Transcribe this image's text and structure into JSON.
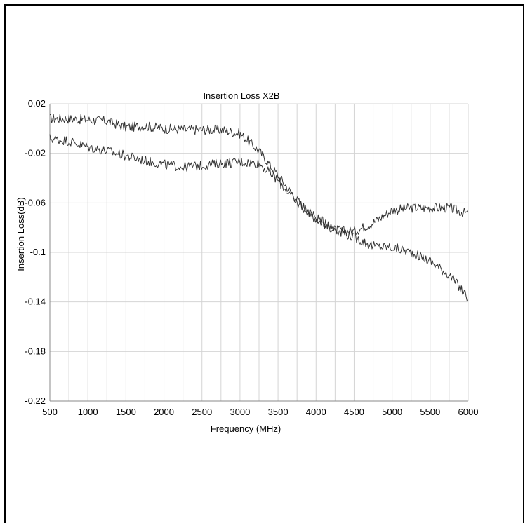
{
  "chart_data": {
    "type": "line",
    "title": "Insertion Loss X2B",
    "xlabel": "Frequency (MHz)",
    "ylabel": "Insertion Loss(dB)",
    "xlim": [
      500,
      6000
    ],
    "ylim": [
      -0.22,
      0.02
    ],
    "x_ticks": [
      500,
      1000,
      1500,
      2000,
      2500,
      3000,
      3500,
      4000,
      4500,
      5000,
      5500,
      6000
    ],
    "x_tick_labels": [
      "500",
      "1000",
      "1500",
      "2000",
      "2500",
      "3000",
      "3500",
      "4000",
      "4500",
      "5000",
      "5500",
      "6000"
    ],
    "y_ticks": [
      0.02,
      -0.02,
      -0.06,
      -0.1,
      -0.14,
      -0.18,
      -0.22
    ],
    "y_tick_labels": [
      "0.02",
      "-0.02",
      "-0.06",
      "-0.1",
      "-0.14",
      "-0.18",
      "-0.22"
    ],
    "x_minor_step": 250,
    "grid": true,
    "legend": "none",
    "line_color": "#333333",
    "grid_color": "#d4d4d4",
    "series": [
      {
        "x": [
          500,
          750,
          1000,
          1250,
          1500,
          1750,
          2000,
          2250,
          2500,
          2750,
          3000,
          3250,
          3500,
          3750,
          4000,
          4250,
          4500,
          4750,
          5000,
          5250,
          5500,
          5750,
          6000
        ],
        "values": [
          0.008,
          0.008,
          0.007,
          0.006,
          0.001,
          0.002,
          0.0,
          -0.001,
          -0.001,
          -0.001,
          -0.004,
          -0.018,
          -0.038,
          -0.058,
          -0.073,
          -0.082,
          -0.083,
          -0.076,
          -0.066,
          -0.064,
          -0.064,
          -0.064,
          -0.069
        ]
      },
      {
        "x": [
          500,
          750,
          1000,
          1250,
          1500,
          1750,
          2000,
          2250,
          2500,
          2750,
          3000,
          3250,
          3500,
          3750,
          4000,
          4250,
          4500,
          4750,
          5000,
          5250,
          5500,
          5750,
          6000
        ],
        "values": [
          -0.008,
          -0.01,
          -0.015,
          -0.018,
          -0.022,
          -0.026,
          -0.029,
          -0.031,
          -0.03,
          -0.028,
          -0.027,
          -0.028,
          -0.042,
          -0.06,
          -0.072,
          -0.081,
          -0.088,
          -0.095,
          -0.096,
          -0.1,
          -0.107,
          -0.118,
          -0.137
        ]
      }
    ]
  }
}
